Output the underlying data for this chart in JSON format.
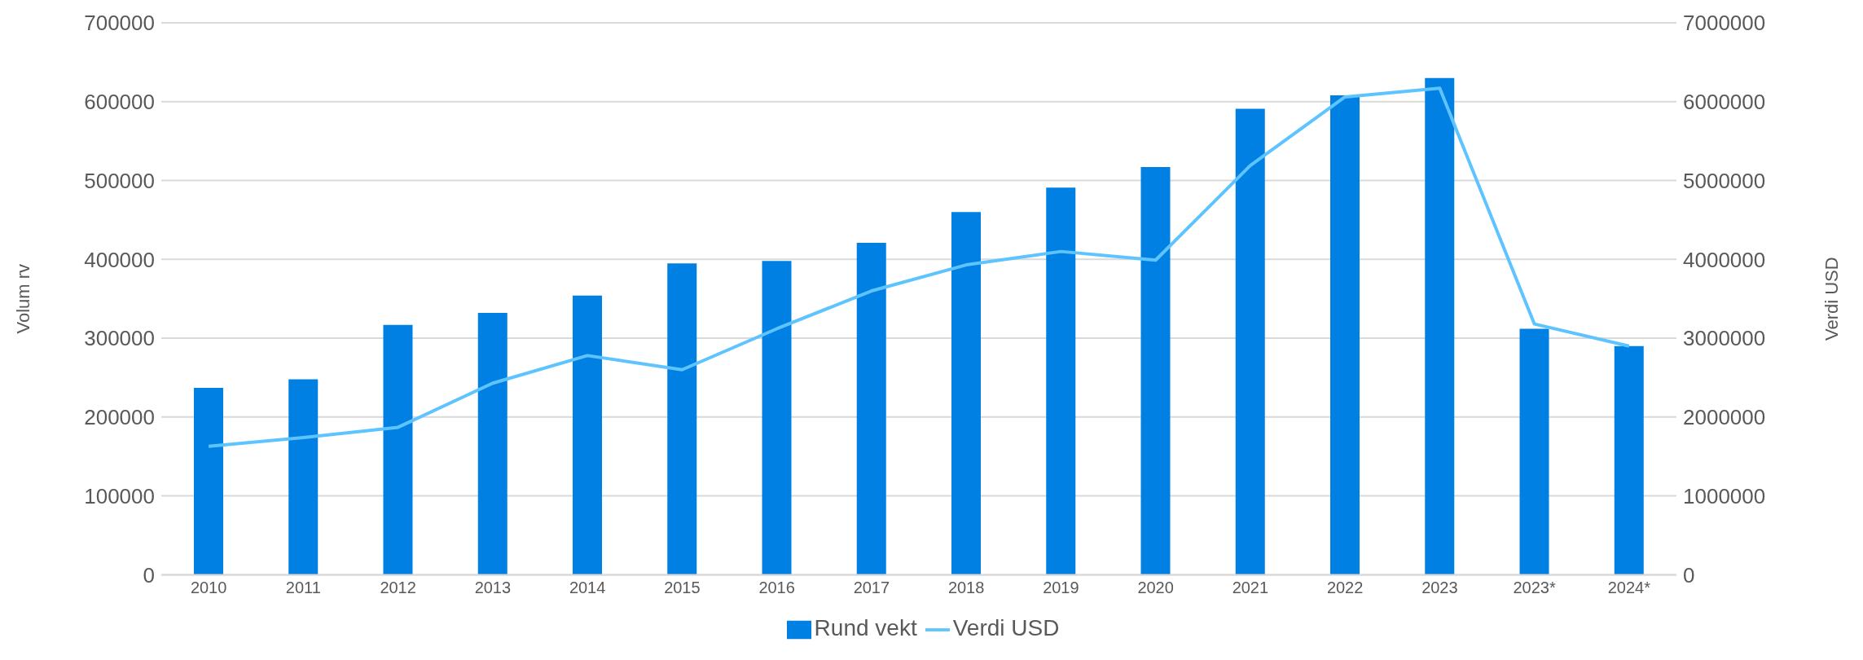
{
  "chart_data": {
    "type": "bar",
    "categories": [
      "2010",
      "2011",
      "2012",
      "2013",
      "2014",
      "2015",
      "2016",
      "2017",
      "2018",
      "2019",
      "2020",
      "2021",
      "2022",
      "2023",
      "2023*",
      "2024*"
    ],
    "series": [
      {
        "name": "Rund vekt",
        "color": "#0080e3",
        "values": [
          237000,
          248000,
          317000,
          332000,
          354000,
          395000,
          398000,
          421000,
          460000,
          491000,
          517000,
          591000,
          608000,
          630000,
          312000,
          290000
        ]
      },
      {
        "name": "Verdi USD",
        "type": "line",
        "axis": "y2",
        "color": "#5ec4ff",
        "values": [
          1630000,
          1740000,
          1870000,
          2430000,
          2780000,
          2600000,
          3120000,
          3600000,
          3930000,
          4100000,
          3990000,
          5190000,
          6060000,
          6170000,
          3180000,
          2900000
        ]
      }
    ],
    "ylabel": "Volum rv",
    "y2label": "Verdi USD",
    "ylim": [
      0,
      700000
    ],
    "yticks": [
      0,
      100000,
      200000,
      300000,
      400000,
      500000,
      600000,
      700000
    ],
    "y2lim": [
      0,
      7000000
    ],
    "y2ticks": [
      0,
      1000000,
      2000000,
      3000000,
      4000000,
      5000000,
      6000000,
      7000000
    ],
    "grid": "y",
    "legend": "bottom",
    "marker": "none"
  }
}
